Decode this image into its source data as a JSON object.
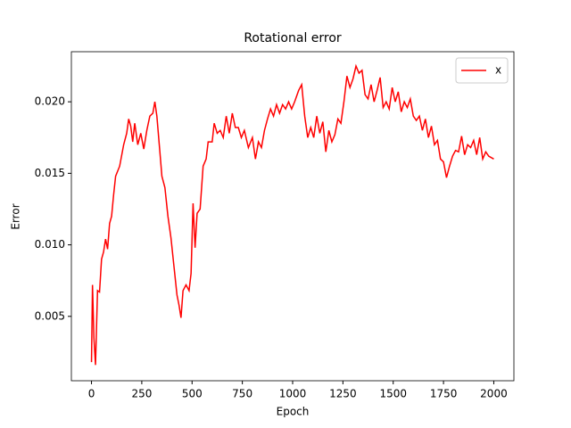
{
  "chart_data": {
    "type": "line",
    "title": "Rotational error",
    "x_label": "Epoch",
    "y_label": "Error",
    "x": [
      0,
      5,
      12,
      20,
      30,
      40,
      50,
      60,
      70,
      80,
      90,
      100,
      110,
      120,
      140,
      160,
      175,
      185,
      195,
      205,
      215,
      230,
      245,
      260,
      275,
      290,
      305,
      315,
      325,
      340,
      350,
      365,
      380,
      395,
      410,
      425,
      435,
      445,
      455,
      470,
      485,
      495,
      505,
      515,
      525,
      540,
      555,
      570,
      580,
      600,
      610,
      625,
      640,
      655,
      670,
      685,
      700,
      715,
      730,
      745,
      760,
      780,
      800,
      815,
      830,
      845,
      860,
      875,
      890,
      905,
      920,
      935,
      950,
      965,
      980,
      995,
      1010,
      1030,
      1045,
      1060,
      1075,
      1090,
      1105,
      1120,
      1135,
      1150,
      1165,
      1180,
      1195,
      1210,
      1225,
      1240,
      1255,
      1270,
      1285,
      1300,
      1315,
      1330,
      1345,
      1360,
      1375,
      1390,
      1405,
      1420,
      1435,
      1450,
      1465,
      1480,
      1495,
      1510,
      1525,
      1540,
      1555,
      1570,
      1585,
      1600,
      1615,
      1630,
      1645,
      1660,
      1675,
      1690,
      1705,
      1720,
      1735,
      1750,
      1765,
      1780,
      1795,
      1810,
      1825,
      1840,
      1855,
      1870,
      1885,
      1900,
      1915,
      1930,
      1945,
      1960,
      1975,
      2000
    ],
    "series": [
      {
        "name": "x",
        "color": "#ff0000",
        "values": [
          0.0018,
          0.0072,
          0.0035,
          0.0016,
          0.0068,
          0.0067,
          0.009,
          0.0095,
          0.0104,
          0.0097,
          0.0115,
          0.012,
          0.0135,
          0.0148,
          0.0155,
          0.017,
          0.0178,
          0.0188,
          0.0183,
          0.0172,
          0.0185,
          0.017,
          0.0178,
          0.0167,
          0.018,
          0.019,
          0.0192,
          0.02,
          0.019,
          0.0165,
          0.0148,
          0.014,
          0.012,
          0.0105,
          0.0085,
          0.0065,
          0.0058,
          0.0049,
          0.0068,
          0.0072,
          0.0068,
          0.008,
          0.0129,
          0.0098,
          0.0122,
          0.0125,
          0.0155,
          0.016,
          0.0172,
          0.0172,
          0.0185,
          0.0178,
          0.018,
          0.0175,
          0.019,
          0.0178,
          0.0192,
          0.0182,
          0.0182,
          0.0175,
          0.018,
          0.0168,
          0.0175,
          0.016,
          0.0172,
          0.0168,
          0.018,
          0.0188,
          0.0195,
          0.019,
          0.0198,
          0.0192,
          0.0198,
          0.0195,
          0.02,
          0.0195,
          0.02,
          0.0208,
          0.0212,
          0.019,
          0.0175,
          0.0182,
          0.0175,
          0.019,
          0.0178,
          0.0186,
          0.0165,
          0.018,
          0.0172,
          0.0177,
          0.0188,
          0.0185,
          0.02,
          0.0218,
          0.021,
          0.0216,
          0.0225,
          0.022,
          0.0222,
          0.0205,
          0.0202,
          0.0212,
          0.02,
          0.0208,
          0.0217,
          0.0196,
          0.02,
          0.0195,
          0.021,
          0.02,
          0.0207,
          0.0193,
          0.02,
          0.0196,
          0.0202,
          0.019,
          0.0187,
          0.019,
          0.018,
          0.0188,
          0.0175,
          0.0183,
          0.017,
          0.0173,
          0.016,
          0.0158,
          0.0147,
          0.0155,
          0.0162,
          0.0166,
          0.0165,
          0.0176,
          0.0163,
          0.017,
          0.0168,
          0.0173,
          0.0163,
          0.0175,
          0.016,
          0.0165,
          0.0162,
          0.016
        ]
      }
    ],
    "xlim": [
      -100,
      2100
    ],
    "ylim": [
      0.0005,
      0.0235
    ],
    "xticks": [
      0,
      250,
      500,
      750,
      1000,
      1250,
      1500,
      1750,
      2000
    ],
    "yticks": [
      0.005,
      {
        "value": 0.01,
        "label": "0.010"
      },
      0.015,
      {
        "value": 0.02,
        "label": "0.020"
      }
    ],
    "grid": false,
    "legend": "upper right"
  }
}
